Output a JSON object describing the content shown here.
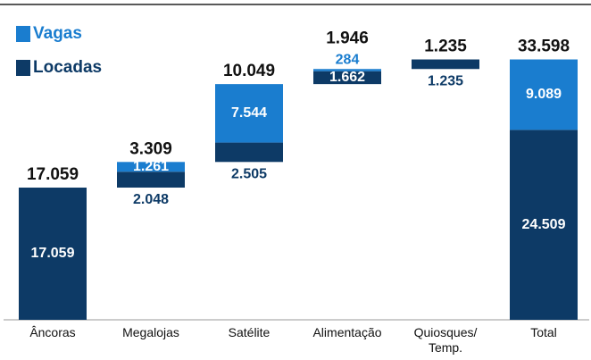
{
  "chart_data": {
    "type": "waterfall",
    "categories": [
      "Âncoras",
      "Megalojas",
      "Satélite",
      "Alimentação",
      "Quiosques/ Temp.",
      "Total"
    ],
    "series": [
      {
        "name": "Locadas",
        "color": "#0d3a66",
        "values": [
          17059,
          2048,
          2505,
          1662,
          1235,
          24509
        ],
        "value_labels": [
          "17.059",
          "2.048",
          "2.505",
          "1.662",
          "1.235",
          "24.509"
        ]
      },
      {
        "name": "Vagas",
        "color": "#1a7dcf",
        "values": [
          null,
          1261,
          7544,
          284,
          null,
          9089
        ],
        "value_labels": [
          null,
          "1.261",
          "7.544",
          "284",
          null,
          "9.089"
        ]
      }
    ],
    "totals": [
      17059,
      3309,
      10049,
      1946,
      1235,
      33598
    ],
    "total_labels": [
      "17.059",
      "3.309",
      "10.049",
      "1.946",
      "1.235",
      "33.598"
    ],
    "ylim": [
      0,
      40000
    ],
    "legend": "top-left"
  }
}
